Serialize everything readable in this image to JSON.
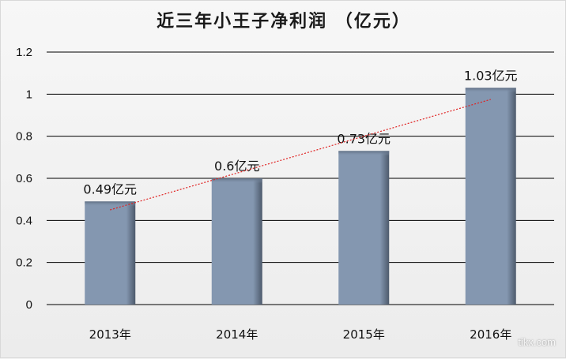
{
  "title": "近三年小王子净利润 （亿元）",
  "watermark": "tikx.com",
  "colors": {
    "bar": "#8497b0",
    "grid": "#000000",
    "trend": "#e02020"
  },
  "chart_data": {
    "type": "bar",
    "title": "近三年小王子净利润 （亿元）",
    "categories": [
      "2013年",
      "2014年",
      "2015年",
      "2016年"
    ],
    "values": [
      0.49,
      0.6,
      0.73,
      1.03
    ],
    "data_labels": [
      "0.49亿元",
      "0.6亿元",
      "0.73亿元",
      "1.03亿元"
    ],
    "ylim": [
      0,
      1.2
    ],
    "y_ticks": [
      "0",
      "0.2",
      "0.4",
      "0.6",
      "0.8",
      "1",
      "1.2"
    ],
    "grid": true,
    "trendline": {
      "type": "linear",
      "style": "dotted",
      "color": "#e02020"
    }
  }
}
